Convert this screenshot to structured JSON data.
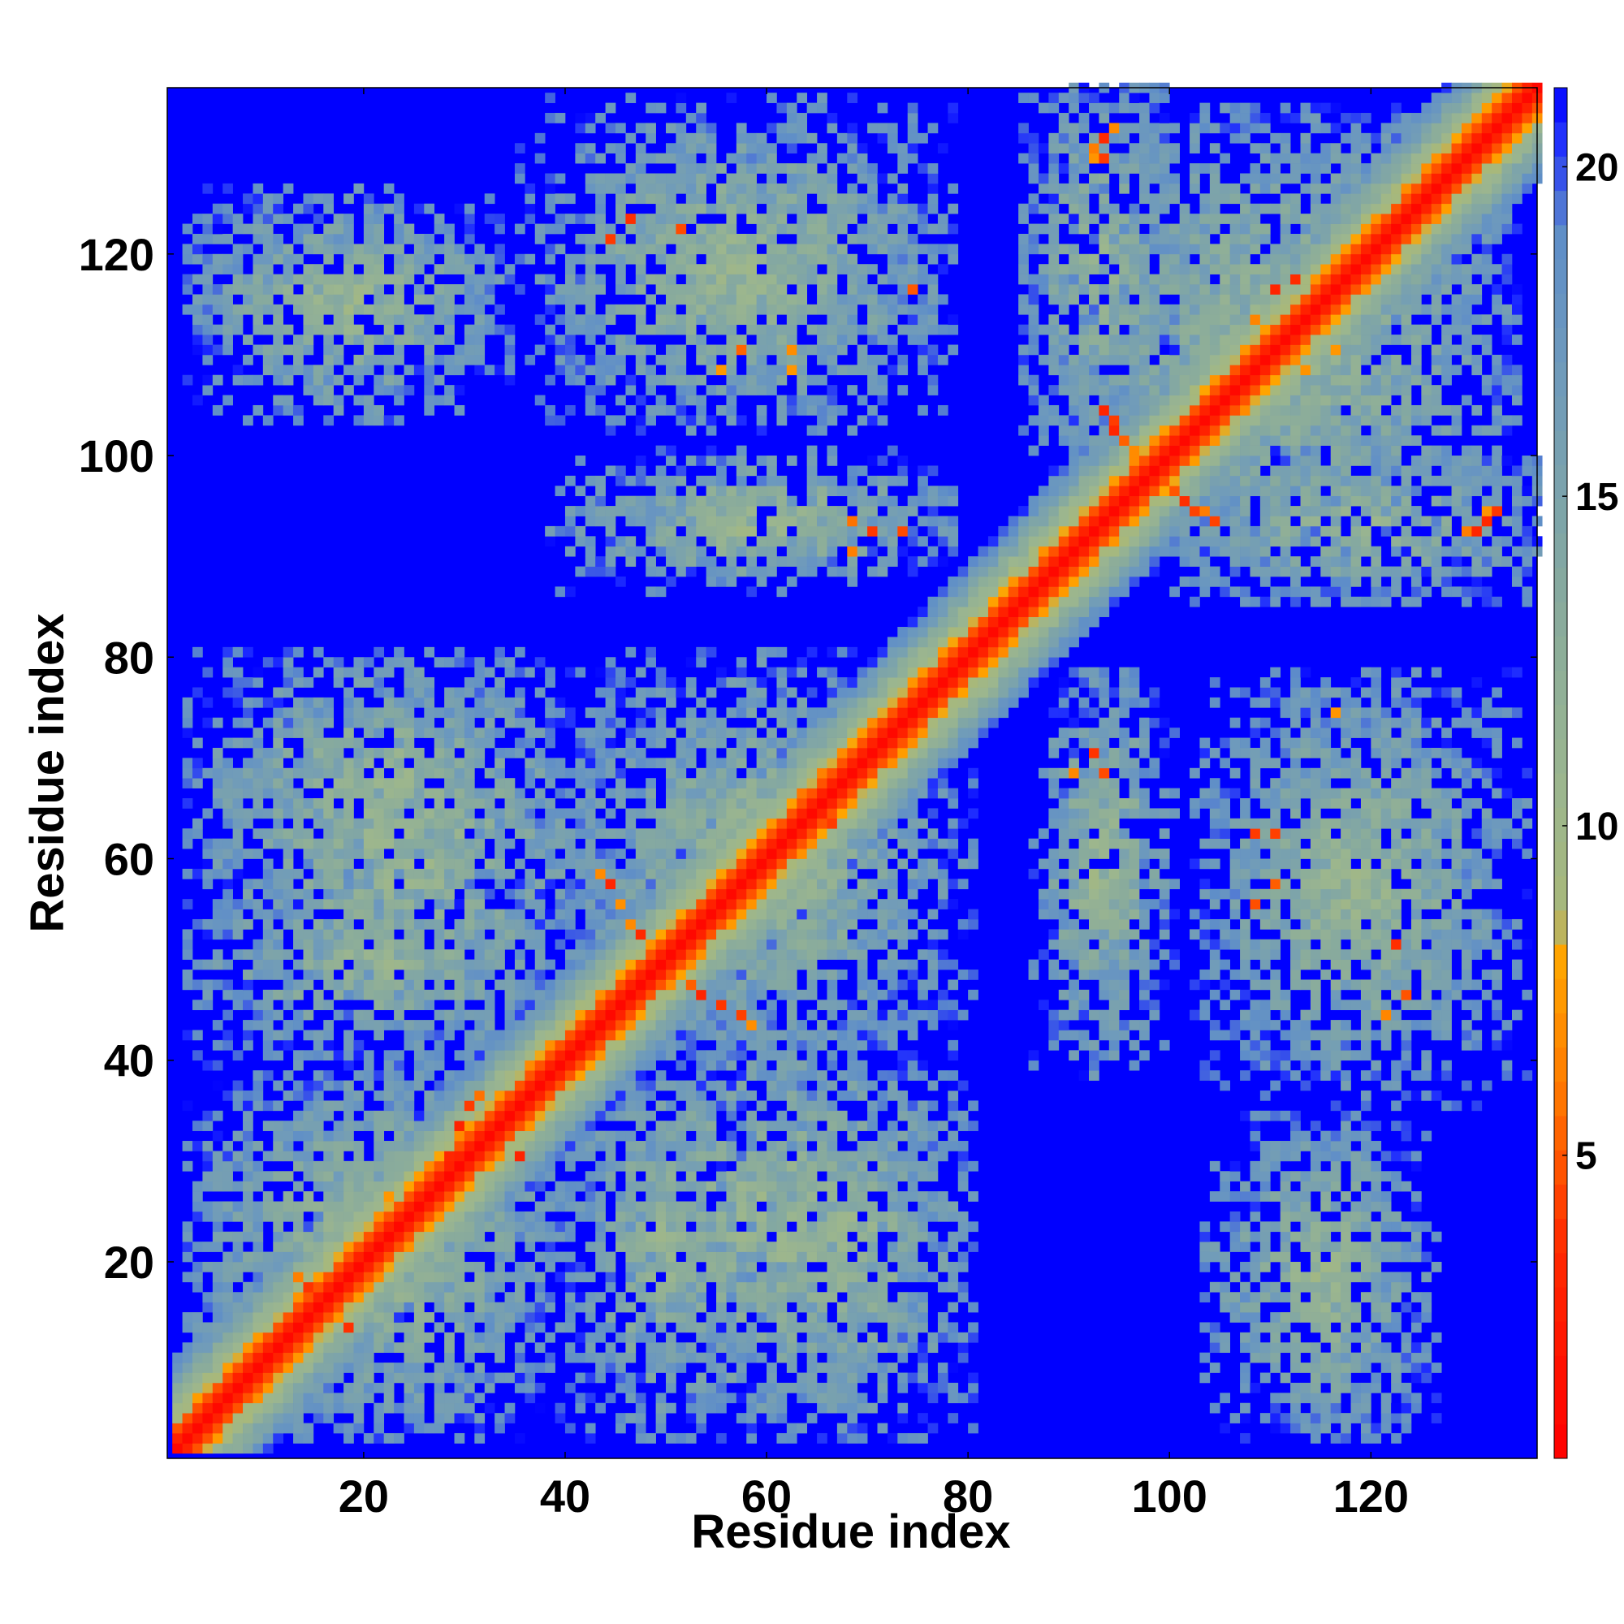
{
  "chart_data": {
    "type": "heatmap",
    "title": "",
    "xlabel": "Residue index",
    "ylabel": "Residue index",
    "n_residues": 136,
    "xlim": [
      1,
      136
    ],
    "ylim": [
      1,
      136
    ],
    "x_ticks": [
      20,
      40,
      60,
      80,
      100,
      120
    ],
    "y_ticks": [
      20,
      40,
      60,
      80,
      100,
      120
    ],
    "value_description": "inter-residue distance; cells at or above the colorbar maximum are drawn in saturated blue",
    "colorbar": {
      "min": 0.4,
      "max": 21.2,
      "ticks": [
        5,
        10,
        15,
        20
      ],
      "stops": [
        {
          "v": 0.4,
          "color": "#ff0000"
        },
        {
          "v": 3.6,
          "color": "#ff2a00"
        },
        {
          "v": 6.0,
          "color": "#ff7a00"
        },
        {
          "v": 8.0,
          "color": "#ffa500"
        },
        {
          "v": 8.6,
          "color": "#a8b87a"
        },
        {
          "v": 10.5,
          "color": "#9cb68e"
        },
        {
          "v": 13.5,
          "color": "#87aa9e"
        },
        {
          "v": 17.0,
          "color": "#6e9abc"
        },
        {
          "v": 19.0,
          "color": "#5f8ec8"
        },
        {
          "v": 20.5,
          "color": "#1e2cff"
        },
        {
          "v": 21.2,
          "color": "#0000ff"
        }
      ]
    },
    "background_color": "#0000ff",
    "contact_regions": [
      {
        "x": [
          1,
          136
        ],
        "y": [
          1,
          136
        ],
        "kind": "diagonal",
        "width": 10
      },
      {
        "x": [
          2,
          40
        ],
        "y": [
          2,
          40
        ],
        "kind": "block"
      },
      {
        "x": [
          2,
          45
        ],
        "y": [
          40,
          80
        ],
        "kind": "block"
      },
      {
        "x": [
          40,
          58
        ],
        "y": [
          2,
          40
        ],
        "kind": "block"
      },
      {
        "x": [
          40,
          78
        ],
        "y": [
          40,
          80
        ],
        "kind": "block"
      },
      {
        "x": [
          40,
          78
        ],
        "y": [
          88,
          100
        ],
        "kind": "block"
      },
      {
        "x": [
          38,
          76
        ],
        "y": [
          103,
          132
        ],
        "kind": "block"
      },
      {
        "x": [
          2,
          34
        ],
        "y": [
          103,
          126
        ],
        "kind": "block"
      },
      {
        "x": [
          55,
          80
        ],
        "y": [
          2,
          40
        ],
        "kind": "block"
      },
      {
        "x": [
          86,
          98
        ],
        "y": [
          38,
          78
        ],
        "kind": "block"
      },
      {
        "x": [
          102,
          135
        ],
        "y": [
          35,
          78
        ],
        "kind": "block"
      },
      {
        "x": [
          107,
          124
        ],
        "y": [
          2,
          34
        ],
        "kind": "block"
      },
      {
        "x": [
          88,
          134
        ],
        "y": [
          88,
          134
        ],
        "kind": "block"
      },
      {
        "x": [
          85,
          100
        ],
        "y": [
          100,
          136
        ],
        "kind": "strip"
      },
      {
        "x": [
          100,
          136
        ],
        "y": [
          85,
          100
        ],
        "kind": "strip"
      }
    ],
    "strong_contacts": [
      [
        92,
        130
      ],
      [
        93,
        131
      ],
      [
        94,
        132
      ],
      [
        92,
        129
      ],
      [
        93,
        129
      ],
      [
        130,
        92
      ],
      [
        131,
        93
      ],
      [
        132,
        94
      ],
      [
        129,
        92
      ],
      [
        131,
        94
      ],
      [
        94,
        102
      ],
      [
        95,
        101
      ],
      [
        96,
        100
      ],
      [
        94,
        103
      ],
      [
        93,
        104
      ],
      [
        102,
        94
      ],
      [
        101,
        95
      ],
      [
        100,
        96
      ],
      [
        103,
        94
      ],
      [
        104,
        93
      ],
      [
        47,
        52
      ],
      [
        46,
        53
      ],
      [
        45,
        55
      ],
      [
        44,
        57
      ],
      [
        43,
        58
      ],
      [
        52,
        47
      ],
      [
        53,
        46
      ],
      [
        55,
        45
      ],
      [
        57,
        44
      ],
      [
        58,
        43
      ],
      [
        31,
        36
      ],
      [
        30,
        35
      ],
      [
        29,
        33
      ],
      [
        33,
        31
      ],
      [
        35,
        30
      ],
      [
        17,
        14
      ],
      [
        14,
        17
      ],
      [
        13,
        18
      ],
      [
        18,
        13
      ],
      [
        22,
        26
      ],
      [
        63,
        66
      ],
      [
        66,
        63
      ],
      [
        65,
        68
      ],
      [
        68,
        65
      ],
      [
        67,
        70
      ],
      [
        108,
        113
      ],
      [
        113,
        108
      ],
      [
        110,
        116
      ],
      [
        116,
        110
      ],
      [
        112,
        117
      ],
      [
        55,
        108
      ],
      [
        57,
        110
      ],
      [
        62,
        108
      ],
      [
        44,
        121
      ],
      [
        51,
        122
      ],
      [
        108,
        55
      ],
      [
        110,
        57
      ],
      [
        108,
        62
      ],
      [
        121,
        44
      ],
      [
        122,
        51
      ],
      [
        68,
        93
      ],
      [
        70,
        92
      ],
      [
        73,
        92
      ],
      [
        93,
        68
      ],
      [
        92,
        70
      ],
      [
        110,
        62
      ],
      [
        62,
        110
      ],
      [
        116,
        74
      ],
      [
        74,
        116
      ],
      [
        123,
        46
      ],
      [
        46,
        123
      ],
      [
        90,
        68
      ],
      [
        68,
        90
      ],
      [
        30,
        28
      ],
      [
        28,
        30
      ]
    ]
  }
}
